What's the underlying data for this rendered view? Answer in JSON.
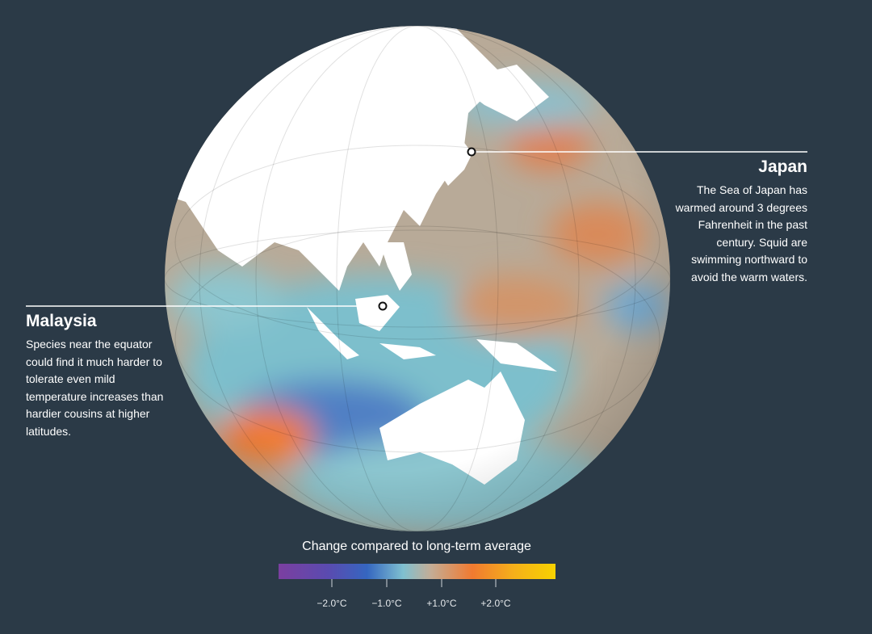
{
  "annotations": [
    {
      "title": "Japan",
      "text": "The Sea of Japan has warmed around 3 degrees Fahrenheit in the past century. Squid are swimming northward to avoid the warm waters."
    },
    {
      "title": "Malaysia",
      "text": "Species near the equator could find it much harder to tolerate even mild temperature increases than hardier cousins at higher latitudes."
    }
  ],
  "legend": {
    "title": "Change compared to long-term average",
    "ticks": [
      "−2.0°C",
      "−1.0°C",
      "+1.0°C",
      "+2.0°C"
    ]
  }
}
